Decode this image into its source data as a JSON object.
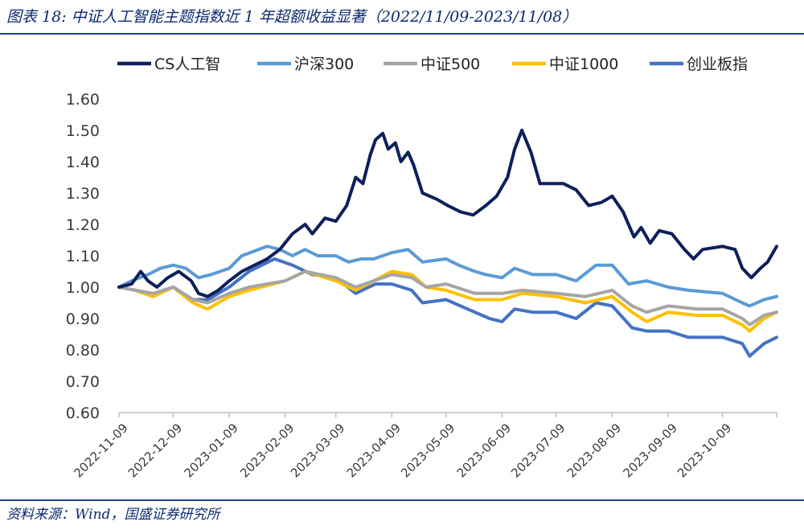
{
  "figure_title": "图表 18:  中证人工智能主题指数近 1 年超额收益显著（2022/11/09-2023/11/08）",
  "source": "资料来源：Wind，国盛证券研究所",
  "chart_data": {
    "type": "line",
    "title": "图表 18:  中证人工智能主题指数近 1 年超额收益显著（2022/11/09-2023/11/08）",
    "xlabel": "",
    "ylabel": "",
    "x_range": [
      "2022-11-09",
      "2023-11-08"
    ],
    "ylim": [
      0.6,
      1.6
    ],
    "y_ticks": [
      "0.60",
      "0.70",
      "0.80",
      "0.90",
      "1.00",
      "1.10",
      "1.20",
      "1.30",
      "1.40",
      "1.50",
      "1.60"
    ],
    "x_ticks": [
      "2022-11-09",
      "2022-12-09",
      "2023-01-09",
      "2023-02-09",
      "2023-03-09",
      "2023-04-09",
      "2023-05-09",
      "2023-06-09",
      "2023-07-09",
      "2023-08-09",
      "2023-09-09",
      "2023-10-09"
    ],
    "grid": false,
    "legend_position": "top",
    "series": [
      {
        "name": "CS人工智",
        "color": "#0e1f5b",
        "points": [
          [
            "2022-11-09",
            1.0
          ],
          [
            "2022-11-16",
            1.01
          ],
          [
            "2022-11-21",
            1.05
          ],
          [
            "2022-11-25",
            1.02
          ],
          [
            "2022-11-30",
            1.0
          ],
          [
            "2022-12-06",
            1.03
          ],
          [
            "2022-12-12",
            1.05
          ],
          [
            "2022-12-19",
            1.02
          ],
          [
            "2022-12-23",
            0.98
          ],
          [
            "2022-12-28",
            0.97
          ],
          [
            "2023-01-03",
            0.99
          ],
          [
            "2023-01-09",
            1.02
          ],
          [
            "2023-01-16",
            1.05
          ],
          [
            "2023-01-30",
            1.09
          ],
          [
            "2023-02-06",
            1.12
          ],
          [
            "2023-02-13",
            1.17
          ],
          [
            "2023-02-20",
            1.2
          ],
          [
            "2023-02-24",
            1.17
          ],
          [
            "2023-03-03",
            1.22
          ],
          [
            "2023-03-09",
            1.21
          ],
          [
            "2023-03-15",
            1.26
          ],
          [
            "2023-03-20",
            1.35
          ],
          [
            "2023-03-24",
            1.33
          ],
          [
            "2023-03-28",
            1.42
          ],
          [
            "2023-03-31",
            1.47
          ],
          [
            "2023-04-04",
            1.49
          ],
          [
            "2023-04-07",
            1.44
          ],
          [
            "2023-04-11",
            1.46
          ],
          [
            "2023-04-14",
            1.4
          ],
          [
            "2023-04-18",
            1.43
          ],
          [
            "2023-04-21",
            1.39
          ],
          [
            "2023-04-26",
            1.3
          ],
          [
            "2023-05-04",
            1.28
          ],
          [
            "2023-05-10",
            1.26
          ],
          [
            "2023-05-17",
            1.24
          ],
          [
            "2023-05-24",
            1.23
          ],
          [
            "2023-05-31",
            1.26
          ],
          [
            "2023-06-06",
            1.29
          ],
          [
            "2023-06-12",
            1.35
          ],
          [
            "2023-06-16",
            1.44
          ],
          [
            "2023-06-20",
            1.5
          ],
          [
            "2023-06-25",
            1.43
          ],
          [
            "2023-06-30",
            1.33
          ],
          [
            "2023-07-06",
            1.33
          ],
          [
            "2023-07-13",
            1.33
          ],
          [
            "2023-07-20",
            1.31
          ],
          [
            "2023-07-27",
            1.26
          ],
          [
            "2023-08-03",
            1.27
          ],
          [
            "2023-08-09",
            1.29
          ],
          [
            "2023-08-15",
            1.24
          ],
          [
            "2023-08-21",
            1.16
          ],
          [
            "2023-08-25",
            1.19
          ],
          [
            "2023-08-30",
            1.14
          ],
          [
            "2023-09-04",
            1.18
          ],
          [
            "2023-09-11",
            1.17
          ],
          [
            "2023-09-18",
            1.12
          ],
          [
            "2023-09-23",
            1.09
          ],
          [
            "2023-09-28",
            1.12
          ],
          [
            "2023-10-09",
            1.13
          ],
          [
            "2023-10-16",
            1.12
          ],
          [
            "2023-10-20",
            1.06
          ],
          [
            "2023-10-25",
            1.03
          ],
          [
            "2023-10-30",
            1.06
          ],
          [
            "2023-11-03",
            1.08
          ],
          [
            "2023-11-08",
            1.13
          ]
        ]
      },
      {
        "name": "沪深300",
        "color": "#5b9bd5",
        "points": [
          [
            "2022-11-09",
            1.0
          ],
          [
            "2022-11-16",
            1.02
          ],
          [
            "2022-11-25",
            1.04
          ],
          [
            "2022-12-02",
            1.06
          ],
          [
            "2022-12-09",
            1.07
          ],
          [
            "2022-12-16",
            1.06
          ],
          [
            "2022-12-23",
            1.03
          ],
          [
            "2022-12-30",
            1.04
          ],
          [
            "2023-01-09",
            1.06
          ],
          [
            "2023-01-16",
            1.1
          ],
          [
            "2023-01-30",
            1.13
          ],
          [
            "2023-02-06",
            1.12
          ],
          [
            "2023-02-13",
            1.1
          ],
          [
            "2023-02-20",
            1.12
          ],
          [
            "2023-02-27",
            1.1
          ],
          [
            "2023-03-09",
            1.1
          ],
          [
            "2023-03-16",
            1.08
          ],
          [
            "2023-03-23",
            1.09
          ],
          [
            "2023-03-30",
            1.09
          ],
          [
            "2023-04-09",
            1.11
          ],
          [
            "2023-04-18",
            1.12
          ],
          [
            "2023-04-26",
            1.08
          ],
          [
            "2023-05-09",
            1.09
          ],
          [
            "2023-05-16",
            1.07
          ],
          [
            "2023-05-25",
            1.05
          ],
          [
            "2023-05-31",
            1.04
          ],
          [
            "2023-06-09",
            1.03
          ],
          [
            "2023-06-16",
            1.06
          ],
          [
            "2023-06-26",
            1.04
          ],
          [
            "2023-07-09",
            1.04
          ],
          [
            "2023-07-20",
            1.02
          ],
          [
            "2023-07-31",
            1.07
          ],
          [
            "2023-08-09",
            1.07
          ],
          [
            "2023-08-18",
            1.01
          ],
          [
            "2023-08-28",
            1.02
          ],
          [
            "2023-09-09",
            1.0
          ],
          [
            "2023-09-20",
            0.99
          ],
          [
            "2023-10-09",
            0.98
          ],
          [
            "2023-10-20",
            0.95
          ],
          [
            "2023-10-24",
            0.94
          ],
          [
            "2023-11-01",
            0.96
          ],
          [
            "2023-11-08",
            0.97
          ]
        ]
      },
      {
        "name": "中证500",
        "color": "#a5a5a5",
        "points": [
          [
            "2022-11-09",
            1.0
          ],
          [
            "2022-11-18",
            0.99
          ],
          [
            "2022-11-28",
            0.98
          ],
          [
            "2022-12-09",
            1.0
          ],
          [
            "2022-12-20",
            0.96
          ],
          [
            "2022-12-28",
            0.95
          ],
          [
            "2023-01-09",
            0.98
          ],
          [
            "2023-01-20",
            1.0
          ],
          [
            "2023-02-09",
            1.02
          ],
          [
            "2023-02-20",
            1.05
          ],
          [
            "2023-03-09",
            1.03
          ],
          [
            "2023-03-20",
            1.0
          ],
          [
            "2023-04-09",
            1.04
          ],
          [
            "2023-04-20",
            1.03
          ],
          [
            "2023-04-28",
            1.0
          ],
          [
            "2023-05-09",
            1.01
          ],
          [
            "2023-05-25",
            0.98
          ],
          [
            "2023-06-09",
            0.98
          ],
          [
            "2023-06-20",
            0.99
          ],
          [
            "2023-07-09",
            0.98
          ],
          [
            "2023-07-25",
            0.97
          ],
          [
            "2023-08-09",
            0.99
          ],
          [
            "2023-08-20",
            0.94
          ],
          [
            "2023-08-28",
            0.92
          ],
          [
            "2023-09-09",
            0.94
          ],
          [
            "2023-09-25",
            0.93
          ],
          [
            "2023-10-09",
            0.93
          ],
          [
            "2023-10-20",
            0.9
          ],
          [
            "2023-10-24",
            0.88
          ],
          [
            "2023-11-01",
            0.91
          ],
          [
            "2023-11-08",
            0.92
          ]
        ]
      },
      {
        "name": "中证1000",
        "color": "#ffc000",
        "points": [
          [
            "2022-11-09",
            1.0
          ],
          [
            "2022-11-18",
            0.99
          ],
          [
            "2022-11-28",
            0.97
          ],
          [
            "2022-12-09",
            1.0
          ],
          [
            "2022-12-20",
            0.95
          ],
          [
            "2022-12-28",
            0.93
          ],
          [
            "2023-01-09",
            0.97
          ],
          [
            "2023-01-20",
            0.99
          ],
          [
            "2023-02-09",
            1.02
          ],
          [
            "2023-02-20",
            1.05
          ],
          [
            "2023-03-09",
            1.02
          ],
          [
            "2023-03-20",
            0.99
          ],
          [
            "2023-04-09",
            1.05
          ],
          [
            "2023-04-20",
            1.04
          ],
          [
            "2023-04-28",
            1.0
          ],
          [
            "2023-05-09",
            0.99
          ],
          [
            "2023-05-25",
            0.96
          ],
          [
            "2023-06-09",
            0.96
          ],
          [
            "2023-06-20",
            0.98
          ],
          [
            "2023-07-09",
            0.97
          ],
          [
            "2023-07-25",
            0.95
          ],
          [
            "2023-08-09",
            0.97
          ],
          [
            "2023-08-20",
            0.92
          ],
          [
            "2023-08-28",
            0.89
          ],
          [
            "2023-09-09",
            0.92
          ],
          [
            "2023-09-25",
            0.91
          ],
          [
            "2023-10-09",
            0.91
          ],
          [
            "2023-10-20",
            0.88
          ],
          [
            "2023-10-24",
            0.86
          ],
          [
            "2023-11-01",
            0.9
          ],
          [
            "2023-11-08",
            0.92
          ]
        ]
      },
      {
        "name": "创业板指",
        "color": "#4472c4",
        "points": [
          [
            "2022-11-09",
            1.0
          ],
          [
            "2022-11-18",
            0.99
          ],
          [
            "2022-11-28",
            0.97
          ],
          [
            "2022-12-09",
            1.0
          ],
          [
            "2022-12-20",
            0.96
          ],
          [
            "2022-12-28",
            0.96
          ],
          [
            "2023-01-09",
            1.0
          ],
          [
            "2023-01-20",
            1.05
          ],
          [
            "2023-02-03",
            1.09
          ],
          [
            "2023-02-13",
            1.07
          ],
          [
            "2023-02-24",
            1.04
          ],
          [
            "2023-03-09",
            1.03
          ],
          [
            "2023-03-20",
            0.98
          ],
          [
            "2023-03-31",
            1.01
          ],
          [
            "2023-04-09",
            1.01
          ],
          [
            "2023-04-20",
            0.99
          ],
          [
            "2023-04-26",
            0.95
          ],
          [
            "2023-05-09",
            0.96
          ],
          [
            "2023-05-25",
            0.92
          ],
          [
            "2023-06-02",
            0.9
          ],
          [
            "2023-06-09",
            0.89
          ],
          [
            "2023-06-16",
            0.93
          ],
          [
            "2023-06-26",
            0.92
          ],
          [
            "2023-07-09",
            0.92
          ],
          [
            "2023-07-20",
            0.9
          ],
          [
            "2023-07-31",
            0.95
          ],
          [
            "2023-08-09",
            0.94
          ],
          [
            "2023-08-20",
            0.87
          ],
          [
            "2023-08-28",
            0.86
          ],
          [
            "2023-09-09",
            0.86
          ],
          [
            "2023-09-20",
            0.84
          ],
          [
            "2023-10-09",
            0.84
          ],
          [
            "2023-10-20",
            0.82
          ],
          [
            "2023-10-24",
            0.78
          ],
          [
            "2023-11-01",
            0.82
          ],
          [
            "2023-11-08",
            0.84
          ]
        ]
      }
    ]
  }
}
